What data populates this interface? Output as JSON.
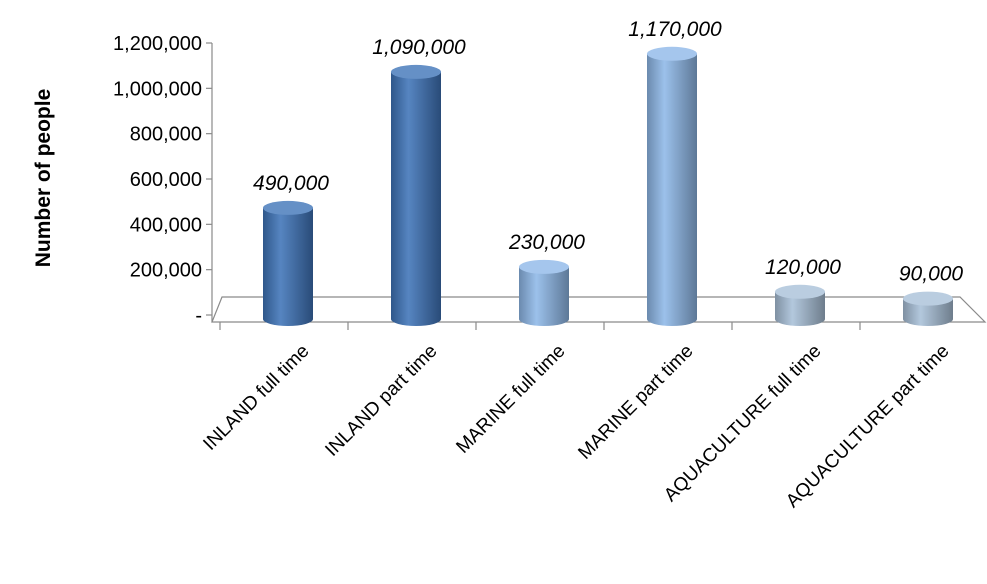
{
  "chart_data": {
    "type": "bar",
    "title": "",
    "xlabel": "",
    "ylabel": "Number of people",
    "ylim": [
      0,
      1200000
    ],
    "y_ticks": [
      {
        "value": 0,
        "label": "-"
      },
      {
        "value": 200000,
        "label": "200,000"
      },
      {
        "value": 400000,
        "label": "400,000"
      },
      {
        "value": 600000,
        "label": "600,000"
      },
      {
        "value": 800000,
        "label": "800,000"
      },
      {
        "value": 1000000,
        "label": "1,000,000"
      },
      {
        "value": 1200000,
        "label": "1,200,000"
      }
    ],
    "categories": [
      "INLAND full time",
      "INLAND part time",
      "MARINE full time",
      "MARINE part time",
      "AQUACULTURE full time",
      "AQUACULTURE part time"
    ],
    "values": [
      490000,
      1090000,
      230000,
      1170000,
      120000,
      90000
    ],
    "data_labels": [
      "490,000",
      "1,090,000",
      "230,000",
      "1,170,000",
      "120,000",
      "90,000"
    ],
    "bar_colors": [
      "#3f74b8",
      "#3f74b8",
      "#8fb8e8",
      "#8fb8e8",
      "#a9c0d8",
      "#a9c0d8"
    ],
    "grid": false,
    "legend": "none",
    "style": "3d-cylinder"
  }
}
